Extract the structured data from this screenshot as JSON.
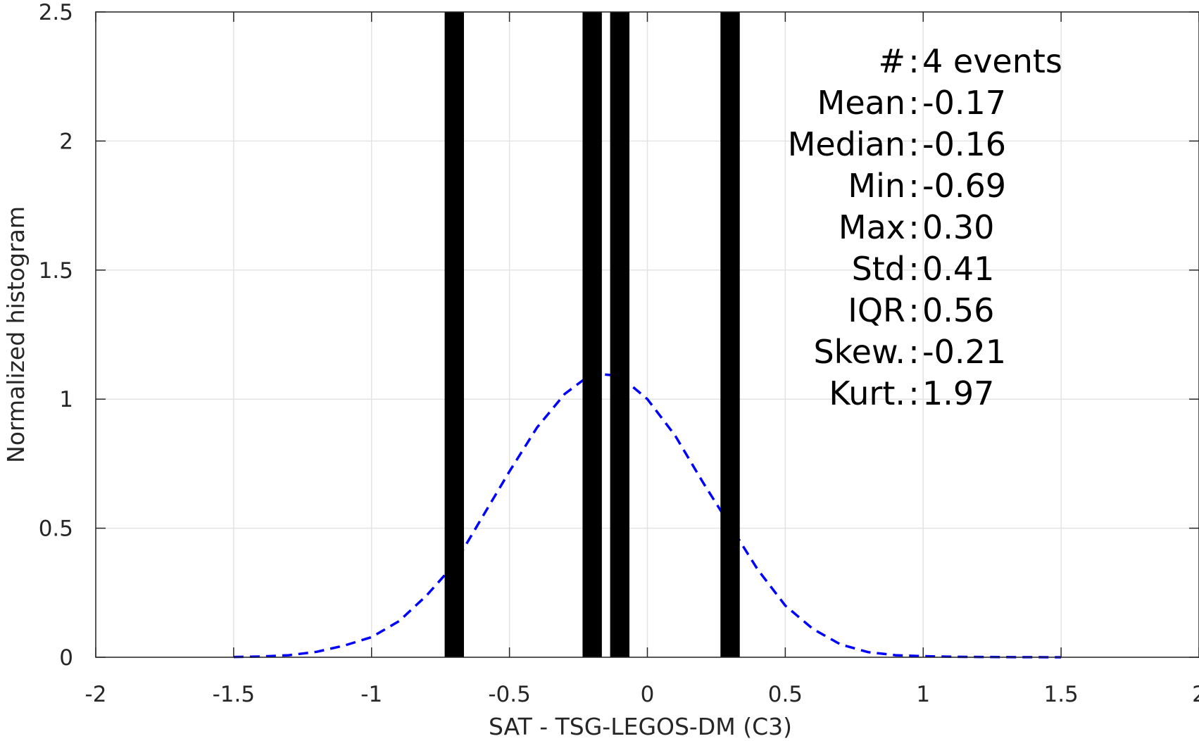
{
  "chart_data": {
    "type": "bar",
    "xlabel": "SAT - TSG-LEGOS-DM (C3)",
    "ylabel": "Normalized histogram",
    "xlim": [
      -2,
      2
    ],
    "ylim": [
      0,
      2.5
    ],
    "x_ticks": [
      "-2",
      "-1.5",
      "-1",
      "-0.5",
      "0",
      "0.5",
      "1",
      "1.5",
      "2"
    ],
    "y_ticks": [
      "0",
      "0.5",
      "1",
      "1.5",
      "2",
      "2.5"
    ],
    "grid": true,
    "bars": [
      {
        "x": -0.7,
        "value": 2.5
      },
      {
        "x": -0.2,
        "value": 2.5
      },
      {
        "x": -0.1,
        "value": 2.5
      },
      {
        "x": 0.3,
        "value": 2.5
      }
    ],
    "bar_color": "#000000",
    "fit_curve": {
      "style": "dashed",
      "color": "#0000ff",
      "mean": -0.17,
      "std": 0.36,
      "x": [
        -1.5,
        -1.4,
        -1.3,
        -1.2,
        -1.1,
        -1.0,
        -0.9,
        -0.8,
        -0.7,
        -0.6,
        -0.5,
        -0.4,
        -0.3,
        -0.2,
        -0.1,
        0.0,
        0.1,
        0.2,
        0.3,
        0.4,
        0.5,
        0.6,
        0.7,
        0.8,
        0.9,
        1.0,
        1.1,
        1.2,
        1.3,
        1.4,
        1.5
      ],
      "y": [
        0.001,
        0.003,
        0.008,
        0.021,
        0.045,
        0.078,
        0.14,
        0.24,
        0.36,
        0.54,
        0.72,
        0.89,
        1.02,
        1.1,
        1.09,
        1.0,
        0.86,
        0.68,
        0.51,
        0.34,
        0.2,
        0.11,
        0.05,
        0.02,
        0.008,
        0.004,
        0.002,
        0.001,
        0.0005,
        0.0002,
        0.0001
      ]
    },
    "stats": [
      {
        "label": "#",
        "value": "4 events"
      },
      {
        "label": "Mean",
        "value": "-0.17"
      },
      {
        "label": "Median",
        "value": "-0.16"
      },
      {
        "label": "Min",
        "value": "-0.69"
      },
      {
        "label": "Max",
        "value": "0.30"
      },
      {
        "label": "Std",
        "value": "0.41"
      },
      {
        "label": "IQR",
        "value": "0.56"
      },
      {
        "label": "Skew.",
        "value": "-0.21"
      },
      {
        "label": "Kurt.",
        "value": "1.97"
      }
    ]
  }
}
